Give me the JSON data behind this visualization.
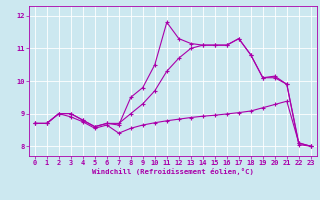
{
  "xlabel": "Windchill (Refroidissement éolien,°C)",
  "background_color": "#cce8f0",
  "line_color": "#aa00aa",
  "x_hours": [
    0,
    1,
    2,
    3,
    4,
    5,
    6,
    7,
    8,
    9,
    10,
    11,
    12,
    13,
    14,
    15,
    16,
    17,
    18,
    19,
    20,
    21,
    22,
    23
  ],
  "line1": [
    8.7,
    8.7,
    9.0,
    9.0,
    8.8,
    8.6,
    8.7,
    8.65,
    9.5,
    9.8,
    10.5,
    11.8,
    11.3,
    11.15,
    11.1,
    11.1,
    11.1,
    11.3,
    10.8,
    10.1,
    10.15,
    9.9,
    8.05,
    8.0
  ],
  "line2": [
    8.7,
    8.7,
    9.0,
    9.0,
    8.8,
    8.6,
    8.7,
    8.7,
    9.0,
    9.3,
    9.7,
    10.3,
    10.7,
    11.0,
    11.1,
    11.1,
    11.1,
    11.3,
    10.8,
    10.1,
    10.1,
    9.9,
    8.1,
    8.0
  ],
  "line3": [
    8.7,
    8.7,
    9.0,
    8.9,
    8.75,
    8.55,
    8.65,
    8.4,
    8.55,
    8.65,
    8.72,
    8.78,
    8.83,
    8.88,
    8.92,
    8.95,
    8.99,
    9.03,
    9.08,
    9.18,
    9.28,
    9.38,
    8.1,
    8.0
  ],
  "ylim": [
    7.7,
    12.3
  ],
  "yticks": [
    8,
    9,
    10,
    11,
    12
  ],
  "xlim": [
    -0.5,
    23.5
  ],
  "xticks": [
    0,
    1,
    2,
    3,
    4,
    5,
    6,
    7,
    8,
    9,
    10,
    11,
    12,
    13,
    14,
    15,
    16,
    17,
    18,
    19,
    20,
    21,
    22,
    23
  ]
}
